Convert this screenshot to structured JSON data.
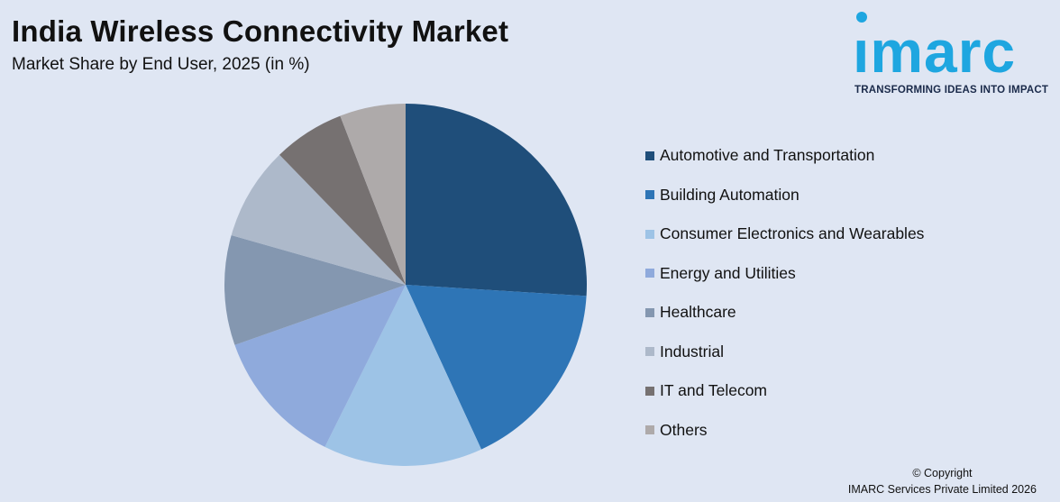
{
  "header": {
    "title": "India Wireless Connectivity Market",
    "subtitle": "Market Share by End User, 2025 (in %)"
  },
  "logo": {
    "word": "ımarc",
    "tagline": "TRANSFORMING IDEAS INTO IMPACT",
    "color": "#1ea6e0"
  },
  "chart_data": {
    "type": "pie",
    "title": "India Wireless Connectivity Market",
    "subtitle": "Market Share by End User, 2025 (in %)",
    "categories": [
      "Automotive and Transportation",
      "Building Automation",
      "Consumer Electronics and Wearables",
      "Energy and Utilities",
      "Healthcare",
      "Industrial",
      "IT and Telecom",
      "Others"
    ],
    "values": [
      26.5,
      17.5,
      14.5,
      12.5,
      10.0,
      8.5,
      6.5,
      6.0
    ],
    "colors": [
      "#1f4e7a",
      "#2e75b6",
      "#9dc3e6",
      "#8faadc",
      "#8497b0",
      "#adb9ca",
      "#767171",
      "#aeaaaa"
    ],
    "legend_position": "right",
    "start_angle_deg": 0,
    "direction": "clockwise"
  },
  "footer": {
    "copyright_line1": "© Copyright",
    "copyright_line2": "IMARC Services Private Limited 2026"
  }
}
